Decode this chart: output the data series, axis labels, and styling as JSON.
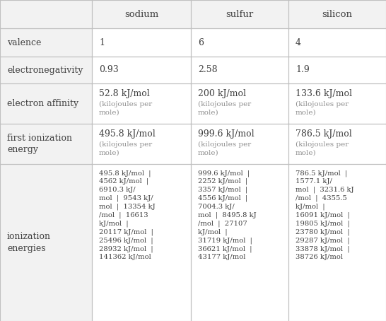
{
  "col_headers": [
    "sodium",
    "sulfur",
    "silicon"
  ],
  "row_labels": [
    "valence",
    "electronegativity",
    "electron affinity",
    "first ionization\nenergy",
    "ionization\nenergies"
  ],
  "valence": [
    "1",
    "6",
    "4"
  ],
  "electronegativity": [
    "0.93",
    "2.58",
    "1.9"
  ],
  "electron_affinity_main": [
    "52.8 kJ/mol",
    "200 kJ/mol",
    "133.6 kJ/mol"
  ],
  "electron_affinity_sub": [
    "(kilojoules per\nmole)",
    "(kilojoules per\nmole)",
    "(kilojoules per\nmole)"
  ],
  "first_ion_main": [
    "495.8 kJ/mol",
    "999.6 kJ/mol",
    "786.5 kJ/mol"
  ],
  "first_ion_sub": [
    "(kilojoules per\nmole)",
    "(kilojoules per\nmole)",
    "(kilojoules per\nmole)"
  ],
  "ion_energies": [
    "495.8 kJ/mol  |\n4562 kJ/mol  |\n6910.3 kJ/\nmol  |  9543 kJ/\nmol  |  13354 kJ\n/mol  |  16613\nkJ/mol  |\n20117 kJ/mol  |\n25496 kJ/mol  |\n28932 kJ/mol  |\n141362 kJ/mol",
    "999.6 kJ/mol  |\n2252 kJ/mol  |\n3357 kJ/mol  |\n4556 kJ/mol  |\n7004.3 kJ/\nmol  |  8495.8 kJ\n/mol  |  27107\nkJ/mol  |\n31719 kJ/mol  |\n36621 kJ/mol  |\n43177 kJ/mol",
    "786.5 kJ/mol  |\n1577.1 kJ/\nmol  |  3231.6 kJ\n/mol  |  4355.5\nkJ/mol  |\n16091 kJ/mol  |\n19805 kJ/mol  |\n23780 kJ/mol  |\n29287 kJ/mol  |\n33878 kJ/mol  |\n38726 kJ/mol"
  ],
  "bg_white": "#ffffff",
  "bg_label_col": "#f2f2f2",
  "bg_header_row": "#f2f2f2",
  "border_color": "#c0c0c0",
  "text_dark": "#404040",
  "text_gray": "#909090",
  "font_family": "DejaVu Serif",
  "fs_header": 9.5,
  "fs_label": 9,
  "fs_data": 9,
  "fs_sub": 7.5,
  "fs_ion": 7.2
}
